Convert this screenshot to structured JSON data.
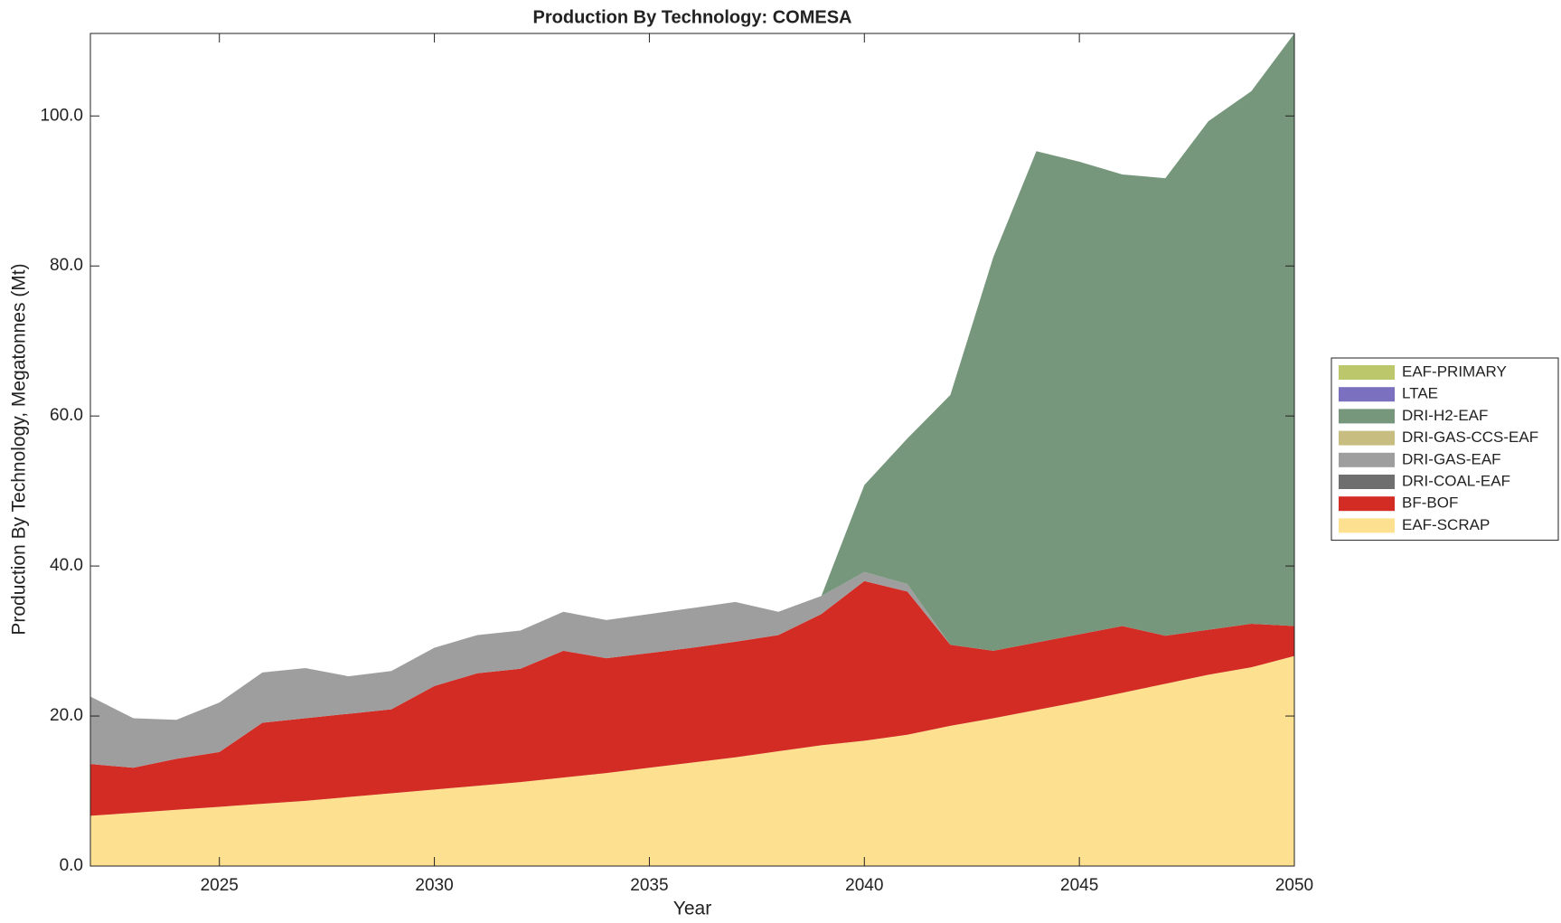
{
  "chart_data": {
    "type": "stacked-area",
    "title": "Production By Technology: COMESA",
    "x_label": "Year",
    "y_label": "Production By Technology, Megatonnes (Mt)",
    "x": [
      2022,
      2023,
      2024,
      2025,
      2026,
      2027,
      2028,
      2029,
      2030,
      2031,
      2032,
      2033,
      2034,
      2035,
      2036,
      2037,
      2038,
      2039,
      2040,
      2041,
      2042,
      2043,
      2044,
      2045,
      2046,
      2047,
      2048,
      2049,
      2050
    ],
    "xlim": [
      2022,
      2050
    ],
    "xticks": [
      2025,
      2030,
      2035,
      2040,
      2045,
      2050
    ],
    "ylim": [
      0,
      111
    ],
    "yticks": [
      {
        "value": 0,
        "label": "0.0"
      },
      {
        "value": 20,
        "label": "20.0"
      },
      {
        "value": 40,
        "label": "40.0"
      },
      {
        "value": 60,
        "label": "60.0"
      },
      {
        "value": 80,
        "label": "80.0"
      },
      {
        "value": 100,
        "label": "100.0"
      }
    ],
    "legend_position": "right",
    "series": [
      {
        "name": "EAF-SCRAP",
        "color": "#fee190",
        "values": [
          6.7,
          7.1,
          7.5,
          7.9,
          8.3,
          8.7,
          9.2,
          9.7,
          10.2,
          10.7,
          11.2,
          11.8,
          12.4,
          13.1,
          13.8,
          14.5,
          15.3,
          16.1,
          16.7,
          17.5,
          18.7,
          19.7,
          20.8,
          21.9,
          23.1,
          24.3,
          25.5,
          26.5,
          28.0
        ]
      },
      {
        "name": "BF-BOF",
        "color": "#d22c24",
        "values": [
          6.9,
          6.0,
          6.8,
          7.3,
          10.8,
          11.0,
          11.1,
          11.2,
          13.8,
          15.0,
          15.1,
          16.9,
          15.3,
          15.3,
          15.3,
          15.4,
          15.5,
          17.5,
          21.3,
          19.1,
          10.8,
          9.0,
          9.0,
          9.0,
          8.9,
          6.4,
          6.0,
          5.8,
          4.0
        ]
      },
      {
        "name": "DRI-COAL-EAF",
        "color": "#6f6f6f",
        "values": [
          0,
          0,
          0,
          0,
          0,
          0,
          0,
          0,
          0,
          0,
          0,
          0,
          0,
          0,
          0,
          0,
          0,
          0,
          0,
          0,
          0,
          0,
          0,
          0,
          0,
          0,
          0,
          0,
          0
        ]
      },
      {
        "name": "DRI-GAS-EAF",
        "color": "#9e9e9e",
        "values": [
          9.0,
          6.6,
          5.2,
          6.6,
          6.7,
          6.7,
          5.0,
          5.1,
          5.1,
          5.1,
          5.1,
          5.2,
          5.1,
          5.2,
          5.3,
          5.3,
          3.1,
          2.4,
          1.2,
          1.0,
          0,
          0,
          0,
          0,
          0,
          0,
          0,
          0,
          0
        ]
      },
      {
        "name": "DRI-GAS-CCS-EAF",
        "color": "#c8bd80",
        "values": [
          0,
          0,
          0,
          0,
          0,
          0,
          0,
          0,
          0,
          0,
          0,
          0,
          0,
          0,
          0,
          0,
          0,
          0,
          0,
          0,
          0,
          0,
          0,
          0,
          0,
          0,
          0,
          0,
          0
        ]
      },
      {
        "name": "DRI-H2-EAF",
        "color": "#76977c",
        "values": [
          0,
          0,
          0,
          0,
          0,
          0,
          0,
          0,
          0,
          0,
          0,
          0,
          0,
          0,
          0,
          0,
          0,
          0,
          11.6,
          19.4,
          33.3,
          52.5,
          65.5,
          63.0,
          60.2,
          61.0,
          67.8,
          71.0,
          79.0
        ]
      },
      {
        "name": "LTAE",
        "color": "#7b70c0",
        "values": [
          0,
          0,
          0,
          0,
          0,
          0,
          0,
          0,
          0,
          0,
          0,
          0,
          0,
          0,
          0,
          0,
          0,
          0,
          0,
          0,
          0,
          0,
          0,
          0,
          0,
          0,
          0,
          0,
          0
        ]
      },
      {
        "name": "EAF-PRIMARY",
        "color": "#bcc66a",
        "values": [
          0,
          0,
          0,
          0,
          0,
          0,
          0,
          0,
          0,
          0,
          0,
          0,
          0,
          0,
          0,
          0,
          0,
          0,
          0,
          0,
          0,
          0,
          0,
          0,
          0,
          0,
          0,
          0,
          0
        ]
      }
    ]
  }
}
